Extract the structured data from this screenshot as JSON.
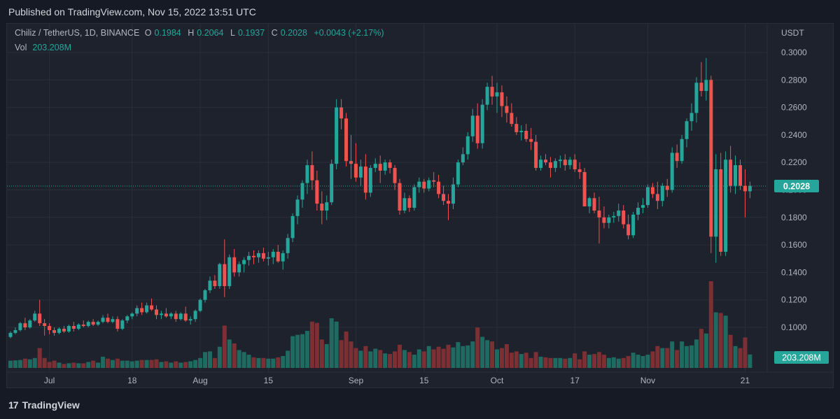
{
  "published": "Published on TradingView.com, Nov 15, 2022 13:51 UTC",
  "legend": {
    "symbol": "Chiliz / TetherUS, 1D, BINANCE",
    "o_label": "O",
    "o": "0.1984",
    "h_label": "H",
    "h": "0.2064",
    "l_label": "L",
    "l": "0.1937",
    "c_label": "C",
    "c": "0.2028",
    "change": "+0.0043 (+2.17%)"
  },
  "vol": {
    "label": "Vol",
    "value": "203.208M"
  },
  "footer": {
    "brand": "TradingView",
    "logo": "17"
  },
  "colors": {
    "up": "#26a69a",
    "down": "#ef5350",
    "bg": "#1e222d"
  },
  "chart_data": {
    "type": "candlestick",
    "currency": "USDT",
    "ylim": [
      0.0855,
      0.3068
    ],
    "yticks": [
      "0.3000",
      "0.2800",
      "0.2600",
      "0.2400",
      "0.2200",
      "0.2000",
      "0.1800",
      "0.1600",
      "0.1400",
      "0.1200",
      "0.1000"
    ],
    "xticks": [
      {
        "label": "Jul",
        "index": 8
      },
      {
        "label": "18",
        "index": 25
      },
      {
        "label": "Aug",
        "index": 39
      },
      {
        "label": "15",
        "index": 53
      },
      {
        "label": "Sep",
        "index": 71
      },
      {
        "label": "15",
        "index": 85
      },
      {
        "label": "Oct",
        "index": 100
      },
      {
        "label": "17",
        "index": 116
      },
      {
        "label": "Nov",
        "index": 131
      },
      {
        "label": "21",
        "index": 151
      }
    ],
    "last_price": "0.2028",
    "last_volume": "203.208M",
    "grid": true,
    "volume_max_M": 1310,
    "candles": [
      [
        0.093,
        0.097,
        0.092,
        0.096,
        110
      ],
      [
        0.096,
        0.1,
        0.095,
        0.098,
        115
      ],
      [
        0.098,
        0.104,
        0.097,
        0.103,
        120
      ],
      [
        0.103,
        0.107,
        0.098,
        0.1,
        140
      ],
      [
        0.1,
        0.106,
        0.099,
        0.105,
        130
      ],
      [
        0.105,
        0.112,
        0.104,
        0.11,
        150
      ],
      [
        0.11,
        0.12,
        0.101,
        0.103,
        300
      ],
      [
        0.103,
        0.106,
        0.094,
        0.101,
        150
      ],
      [
        0.101,
        0.103,
        0.095,
        0.098,
        90
      ],
      [
        0.098,
        0.1,
        0.094,
        0.096,
        110
      ],
      [
        0.096,
        0.1,
        0.095,
        0.099,
        80
      ],
      [
        0.099,
        0.101,
        0.096,
        0.097,
        60
      ],
      [
        0.097,
        0.102,
        0.096,
        0.101,
        70
      ],
      [
        0.101,
        0.104,
        0.097,
        0.099,
        80
      ],
      [
        0.099,
        0.103,
        0.098,
        0.102,
        70
      ],
      [
        0.102,
        0.105,
        0.1,
        0.101,
        70
      ],
      [
        0.101,
        0.105,
        0.1,
        0.104,
        90
      ],
      [
        0.104,
        0.106,
        0.101,
        0.102,
        110
      ],
      [
        0.102,
        0.105,
        0.101,
        0.104,
        80
      ],
      [
        0.104,
        0.109,
        0.103,
        0.107,
        170
      ],
      [
        0.107,
        0.11,
        0.103,
        0.104,
        140
      ],
      [
        0.104,
        0.108,
        0.103,
        0.106,
        120
      ],
      [
        0.106,
        0.108,
        0.097,
        0.099,
        140
      ],
      [
        0.099,
        0.106,
        0.098,
        0.105,
        110
      ],
      [
        0.105,
        0.109,
        0.103,
        0.108,
        110
      ],
      [
        0.108,
        0.111,
        0.106,
        0.11,
        100
      ],
      [
        0.11,
        0.116,
        0.108,
        0.114,
        110
      ],
      [
        0.114,
        0.118,
        0.109,
        0.111,
        120
      ],
      [
        0.111,
        0.118,
        0.11,
        0.116,
        120
      ],
      [
        0.116,
        0.121,
        0.112,
        0.113,
        120
      ],
      [
        0.113,
        0.116,
        0.106,
        0.109,
        130
      ],
      [
        0.109,
        0.112,
        0.106,
        0.11,
        90
      ],
      [
        0.11,
        0.114,
        0.107,
        0.108,
        100
      ],
      [
        0.108,
        0.111,
        0.106,
        0.11,
        80
      ],
      [
        0.11,
        0.112,
        0.104,
        0.106,
        100
      ],
      [
        0.106,
        0.111,
        0.105,
        0.11,
        80
      ],
      [
        0.11,
        0.115,
        0.104,
        0.105,
        90
      ],
      [
        0.105,
        0.108,
        0.102,
        0.106,
        100
      ],
      [
        0.106,
        0.113,
        0.104,
        0.112,
        120
      ],
      [
        0.112,
        0.121,
        0.111,
        0.12,
        150
      ],
      [
        0.12,
        0.128,
        0.118,
        0.127,
        240
      ],
      [
        0.127,
        0.137,
        0.125,
        0.134,
        250
      ],
      [
        0.134,
        0.138,
        0.128,
        0.13,
        150
      ],
      [
        0.13,
        0.147,
        0.128,
        0.146,
        320
      ],
      [
        0.146,
        0.164,
        0.122,
        0.13,
        640
      ],
      [
        0.13,
        0.153,
        0.128,
        0.151,
        430
      ],
      [
        0.151,
        0.157,
        0.137,
        0.14,
        370
      ],
      [
        0.14,
        0.148,
        0.137,
        0.146,
        270
      ],
      [
        0.146,
        0.151,
        0.14,
        0.149,
        240
      ],
      [
        0.149,
        0.155,
        0.145,
        0.152,
        200
      ],
      [
        0.152,
        0.156,
        0.146,
        0.151,
        160
      ],
      [
        0.151,
        0.156,
        0.147,
        0.154,
        150
      ],
      [
        0.154,
        0.158,
        0.148,
        0.15,
        150
      ],
      [
        0.15,
        0.155,
        0.145,
        0.151,
        140
      ],
      [
        0.151,
        0.157,
        0.146,
        0.155,
        140
      ],
      [
        0.155,
        0.16,
        0.147,
        0.148,
        160
      ],
      [
        0.148,
        0.156,
        0.142,
        0.154,
        180
      ],
      [
        0.154,
        0.168,
        0.15,
        0.165,
        260
      ],
      [
        0.165,
        0.183,
        0.162,
        0.181,
        480
      ],
      [
        0.181,
        0.196,
        0.175,
        0.193,
        500
      ],
      [
        0.193,
        0.207,
        0.187,
        0.205,
        510
      ],
      [
        0.205,
        0.222,
        0.197,
        0.218,
        560
      ],
      [
        0.218,
        0.228,
        0.2,
        0.207,
        700
      ],
      [
        0.207,
        0.214,
        0.185,
        0.19,
        680
      ],
      [
        0.19,
        0.199,
        0.175,
        0.185,
        430
      ],
      [
        0.185,
        0.196,
        0.178,
        0.191,
        360
      ],
      [
        0.191,
        0.222,
        0.189,
        0.219,
        750
      ],
      [
        0.219,
        0.266,
        0.215,
        0.26,
        700
      ],
      [
        0.26,
        0.266,
        0.244,
        0.252,
        420
      ],
      [
        0.252,
        0.256,
        0.217,
        0.221,
        550
      ],
      [
        0.221,
        0.24,
        0.208,
        0.219,
        400
      ],
      [
        0.219,
        0.234,
        0.206,
        0.209,
        300
      ],
      [
        0.209,
        0.222,
        0.203,
        0.217,
        260
      ],
      [
        0.217,
        0.226,
        0.193,
        0.198,
        330
      ],
      [
        0.198,
        0.218,
        0.195,
        0.216,
        250
      ],
      [
        0.216,
        0.223,
        0.213,
        0.219,
        290
      ],
      [
        0.219,
        0.225,
        0.205,
        0.214,
        270
      ],
      [
        0.214,
        0.222,
        0.211,
        0.22,
        220
      ],
      [
        0.22,
        0.222,
        0.212,
        0.216,
        210
      ],
      [
        0.216,
        0.218,
        0.2,
        0.205,
        250
      ],
      [
        0.205,
        0.208,
        0.182,
        0.185,
        350
      ],
      [
        0.185,
        0.198,
        0.183,
        0.194,
        270
      ],
      [
        0.194,
        0.196,
        0.184,
        0.187,
        240
      ],
      [
        0.187,
        0.204,
        0.185,
        0.202,
        200
      ],
      [
        0.202,
        0.209,
        0.198,
        0.206,
        280
      ],
      [
        0.206,
        0.208,
        0.198,
        0.201,
        250
      ],
      [
        0.201,
        0.209,
        0.199,
        0.207,
        330
      ],
      [
        0.207,
        0.213,
        0.202,
        0.206,
        280
      ],
      [
        0.206,
        0.211,
        0.194,
        0.197,
        320
      ],
      [
        0.197,
        0.203,
        0.189,
        0.192,
        290
      ],
      [
        0.192,
        0.197,
        0.178,
        0.19,
        350
      ],
      [
        0.19,
        0.209,
        0.186,
        0.204,
        310
      ],
      [
        0.204,
        0.222,
        0.202,
        0.22,
        390
      ],
      [
        0.22,
        0.231,
        0.218,
        0.226,
        330
      ],
      [
        0.226,
        0.242,
        0.222,
        0.239,
        340
      ],
      [
        0.239,
        0.259,
        0.235,
        0.254,
        400
      ],
      [
        0.254,
        0.263,
        0.23,
        0.234,
        610
      ],
      [
        0.234,
        0.266,
        0.23,
        0.262,
        470
      ],
      [
        0.262,
        0.278,
        0.258,
        0.275,
        420
      ],
      [
        0.275,
        0.283,
        0.262,
        0.268,
        400
      ],
      [
        0.268,
        0.278,
        0.256,
        0.271,
        280
      ],
      [
        0.271,
        0.276,
        0.253,
        0.261,
        300
      ],
      [
        0.261,
        0.268,
        0.249,
        0.256,
        360
      ],
      [
        0.256,
        0.263,
        0.246,
        0.248,
        230
      ],
      [
        0.248,
        0.253,
        0.24,
        0.242,
        250
      ],
      [
        0.242,
        0.247,
        0.236,
        0.243,
        210
      ],
      [
        0.243,
        0.248,
        0.235,
        0.237,
        230
      ],
      [
        0.237,
        0.245,
        0.229,
        0.235,
        150
      ],
      [
        0.235,
        0.24,
        0.214,
        0.216,
        240
      ],
      [
        0.216,
        0.225,
        0.214,
        0.222,
        170
      ],
      [
        0.222,
        0.226,
        0.218,
        0.22,
        160
      ],
      [
        0.22,
        0.224,
        0.209,
        0.216,
        150
      ],
      [
        0.216,
        0.223,
        0.213,
        0.221,
        150
      ],
      [
        0.221,
        0.225,
        0.216,
        0.222,
        150
      ],
      [
        0.222,
        0.226,
        0.214,
        0.218,
        140
      ],
      [
        0.218,
        0.224,
        0.215,
        0.222,
        150
      ],
      [
        0.222,
        0.226,
        0.213,
        0.215,
        220
      ],
      [
        0.215,
        0.22,
        0.208,
        0.213,
        130
      ],
      [
        0.213,
        0.216,
        0.189,
        0.188,
        250
      ],
      [
        0.188,
        0.195,
        0.183,
        0.194,
        200
      ],
      [
        0.194,
        0.198,
        0.183,
        0.185,
        210
      ],
      [
        0.185,
        0.195,
        0.161,
        0.18,
        240
      ],
      [
        0.18,
        0.188,
        0.172,
        0.176,
        200
      ],
      [
        0.176,
        0.182,
        0.172,
        0.18,
        150
      ],
      [
        0.18,
        0.184,
        0.176,
        0.181,
        160
      ],
      [
        0.181,
        0.19,
        0.177,
        0.185,
        140
      ],
      [
        0.185,
        0.189,
        0.172,
        0.175,
        150
      ],
      [
        0.175,
        0.182,
        0.164,
        0.167,
        180
      ],
      [
        0.167,
        0.184,
        0.165,
        0.182,
        230
      ],
      [
        0.182,
        0.191,
        0.178,
        0.187,
        200
      ],
      [
        0.187,
        0.194,
        0.183,
        0.189,
        180
      ],
      [
        0.189,
        0.204,
        0.187,
        0.202,
        200
      ],
      [
        0.202,
        0.205,
        0.194,
        0.197,
        250
      ],
      [
        0.197,
        0.206,
        0.186,
        0.192,
        330
      ],
      [
        0.192,
        0.205,
        0.188,
        0.203,
        300
      ],
      [
        0.203,
        0.208,
        0.195,
        0.2,
        300
      ],
      [
        0.2,
        0.231,
        0.198,
        0.227,
        400
      ],
      [
        0.227,
        0.233,
        0.216,
        0.221,
        270
      ],
      [
        0.221,
        0.24,
        0.219,
        0.237,
        400
      ],
      [
        0.237,
        0.252,
        0.231,
        0.25,
        330
      ],
      [
        0.25,
        0.263,
        0.243,
        0.256,
        340
      ],
      [
        0.256,
        0.282,
        0.249,
        0.278,
        430
      ],
      [
        0.278,
        0.293,
        0.268,
        0.272,
        590
      ],
      [
        0.272,
        0.296,
        0.265,
        0.28,
        520
      ],
      [
        0.28,
        0.283,
        0.154,
        0.166,
        1310
      ],
      [
        0.166,
        0.226,
        0.147,
        0.215,
        840
      ],
      [
        0.215,
        0.227,
        0.152,
        0.155,
        830
      ],
      [
        0.155,
        0.228,
        0.152,
        0.222,
        790
      ],
      [
        0.222,
        0.232,
        0.198,
        0.203,
        500
      ],
      [
        0.203,
        0.225,
        0.197,
        0.218,
        330
      ],
      [
        0.218,
        0.222,
        0.2,
        0.203,
        300
      ],
      [
        0.203,
        0.215,
        0.18,
        0.199,
        460
      ],
      [
        0.199,
        0.206,
        0.194,
        0.203,
        203
      ]
    ]
  }
}
